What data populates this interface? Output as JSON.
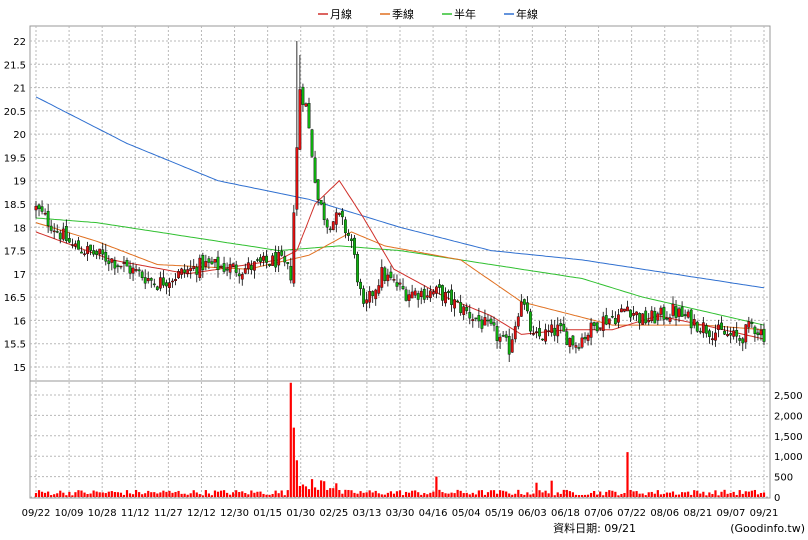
{
  "chart_data": {
    "type": "candlestick",
    "legend": [
      {
        "name": "月線",
        "color": "#d0302a"
      },
      {
        "name": "季線",
        "color": "#e07020"
      },
      {
        "name": "半年",
        "color": "#30c030"
      },
      {
        "name": "年線",
        "color": "#3070d0"
      }
    ],
    "price_axis": {
      "min": 15,
      "max": 22,
      "ticks": [
        "15",
        "15.5",
        "16",
        "16.5",
        "17",
        "17.5",
        "18",
        "18.5",
        "19",
        "19.5",
        "20",
        "20.5",
        "21",
        "21.5",
        "22"
      ]
    },
    "volume_axis": {
      "min": 0,
      "max": 2500,
      "ticks": [
        "0",
        "500",
        "1,000",
        "1,500",
        "2,000",
        "2,500"
      ]
    },
    "x_labels": [
      "09/22",
      "10/09",
      "10/28",
      "11/12",
      "11/27",
      "12/12",
      "12/30",
      "01/15",
      "01/30",
      "02/25",
      "03/13",
      "03/30",
      "04/16",
      "05/04",
      "05/19",
      "06/03",
      "06/18",
      "07/06",
      "07/22",
      "08/06",
      "08/21",
      "09/07",
      "09/21"
    ],
    "candle_colors": {
      "up": "#e01010",
      "down": "#10b010"
    },
    "volume_color": "#ff0000",
    "series_hint": {
      "close_anchors": [
        [
          0,
          18.4
        ],
        [
          12,
          17.6
        ],
        [
          25,
          17.3
        ],
        [
          40,
          16.8
        ],
        [
          55,
          17.2
        ],
        [
          68,
          17.1
        ],
        [
          80,
          17.3
        ],
        [
          84,
          17.0
        ],
        [
          87,
          21.0
        ],
        [
          89,
          20.6
        ],
        [
          91,
          19.6
        ],
        [
          93,
          18.6
        ],
        [
          96,
          18.1
        ],
        [
          100,
          18.2
        ],
        [
          104,
          17.7
        ],
        [
          108,
          16.2
        ],
        [
          114,
          17.0
        ],
        [
          122,
          16.6
        ],
        [
          133,
          16.6
        ],
        [
          150,
          15.8
        ],
        [
          156,
          15.4
        ],
        [
          160,
          16.5
        ],
        [
          164,
          15.6
        ],
        [
          172,
          15.8
        ],
        [
          178,
          15.5
        ],
        [
          186,
          16.0
        ],
        [
          192,
          16.1
        ],
        [
          195,
          16.3
        ],
        [
          200,
          16.0
        ],
        [
          206,
          16.1
        ],
        [
          210,
          16.2
        ],
        [
          216,
          16.0
        ],
        [
          222,
          15.8
        ],
        [
          232,
          15.6
        ],
        [
          236,
          15.9
        ],
        [
          240,
          15.7
        ]
      ],
      "year_line": [
        [
          0,
          20.8
        ],
        [
          30,
          19.8
        ],
        [
          60,
          19.0
        ],
        [
          90,
          18.6
        ],
        [
          120,
          18.0
        ],
        [
          150,
          17.5
        ],
        [
          180,
          17.3
        ],
        [
          210,
          17.0
        ],
        [
          240,
          16.7
        ]
      ],
      "half_line": [
        [
          0,
          18.2
        ],
        [
          20,
          18.1
        ],
        [
          50,
          17.8
        ],
        [
          80,
          17.5
        ],
        [
          100,
          17.6
        ],
        [
          120,
          17.5
        ],
        [
          150,
          17.2
        ],
        [
          180,
          16.9
        ],
        [
          200,
          16.5
        ],
        [
          220,
          16.2
        ],
        [
          240,
          15.9
        ]
      ],
      "quarter_line": [
        [
          0,
          18.1
        ],
        [
          20,
          17.7
        ],
        [
          40,
          17.2
        ],
        [
          70,
          17.1
        ],
        [
          90,
          17.4
        ],
        [
          104,
          17.9
        ],
        [
          115,
          17.6
        ],
        [
          140,
          17.3
        ],
        [
          160,
          16.4
        ],
        [
          190,
          15.9
        ],
        [
          220,
          15.9
        ],
        [
          240,
          15.8
        ]
      ],
      "month_line": [
        [
          0,
          17.9
        ],
        [
          25,
          17.3
        ],
        [
          50,
          17.0
        ],
        [
          80,
          17.3
        ],
        [
          86,
          17.5
        ],
        [
          92,
          18.5
        ],
        [
          100,
          19.0
        ],
        [
          108,
          18.2
        ],
        [
          118,
          17.1
        ],
        [
          135,
          16.5
        ],
        [
          150,
          16.1
        ],
        [
          160,
          15.7
        ],
        [
          175,
          15.8
        ],
        [
          190,
          15.8
        ],
        [
          205,
          16.1
        ],
        [
          220,
          15.9
        ],
        [
          240,
          15.6
        ]
      ],
      "volume_spikes": [
        [
          84,
          2800
        ],
        [
          85,
          1700
        ],
        [
          86,
          900
        ],
        [
          132,
          500
        ],
        [
          195,
          1100
        ],
        [
          165,
          350
        ],
        [
          170,
          400
        ]
      ]
    }
  },
  "footer": {
    "date_label": "資料日期: 09/21",
    "source": "(Goodinfo.tw)"
  }
}
